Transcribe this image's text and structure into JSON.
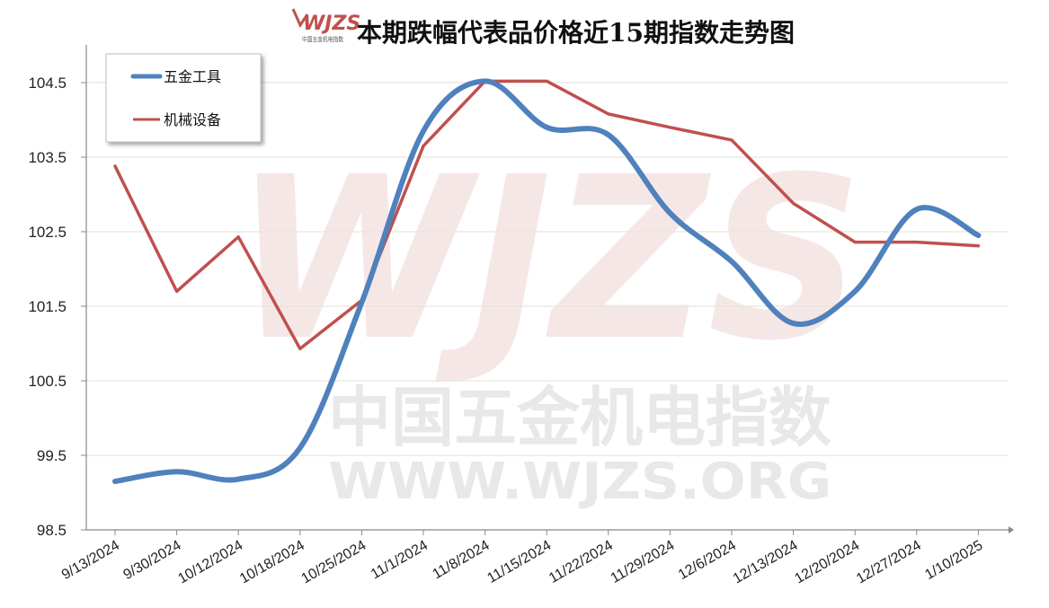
{
  "chart_data": {
    "type": "line",
    "title": "本期跌幅代表品价格近15期指数走势图",
    "logo_text": "WJZS",
    "logo_subtext": "中国五金机电指数",
    "watermark": {
      "big": "WJZS",
      "cn": "中国五金机电指数",
      "url": "WWW.WJZS.ORG"
    },
    "categories": [
      "9/13/2024",
      "9/30/2024",
      "10/12/2024",
      "10/18/2024",
      "10/25/2024",
      "11/1/2024",
      "11/8/2024",
      "11/15/2024",
      "11/22/2024",
      "11/29/2024",
      "12/6/2024",
      "12/13/2024",
      "12/20/2024",
      "12/27/2024",
      "1/10/2025"
    ],
    "yticks": [
      "98.5",
      "99.5",
      "100.5",
      "101.5",
      "102.5",
      "103.5",
      "104.5"
    ],
    "ylim": [
      98.5,
      104.5
    ],
    "grid": true,
    "legend_position": "top-left",
    "series": [
      {
        "name": "五金工具",
        "color": "#4f81bd",
        "smooth": true,
        "values": [
          99.15,
          99.28,
          99.18,
          99.6,
          101.55,
          103.85,
          104.52,
          103.9,
          103.8,
          102.75,
          102.1,
          101.27,
          101.7,
          102.8,
          102.45
        ]
      },
      {
        "name": "机械设备",
        "color": "#c0504d",
        "smooth": false,
        "values": [
          103.38,
          101.7,
          102.43,
          100.93,
          101.58,
          103.65,
          104.52,
          104.52,
          104.08,
          103.9,
          103.73,
          102.88,
          102.36,
          102.36,
          102.31
        ]
      }
    ]
  }
}
